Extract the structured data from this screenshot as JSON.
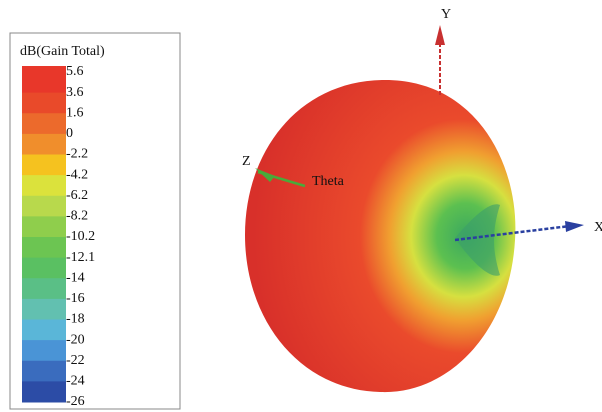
{
  "legend": {
    "title": "dB(Gain Total)",
    "levels": [
      "5.6",
      "3.6",
      "1.6",
      "0",
      "-2.2",
      "-4.2",
      "-6.2",
      "-8.2",
      "-10.2",
      "-12.1",
      "-14",
      "-16",
      "-18",
      "-20",
      "-22",
      "-24",
      "-26"
    ],
    "colors": [
      "#e8372a",
      "#e94a2a",
      "#ec6a2c",
      "#f08e2c",
      "#f5c21f",
      "#dbe23c",
      "#b8d94c",
      "#8fce4c",
      "#6cc552",
      "#5ac062",
      "#5abf86",
      "#62c0b0",
      "#5ab6d8",
      "#4a94d6",
      "#3a6cbe",
      "#2c4ca6"
    ]
  },
  "axes": {
    "x": "X",
    "y": "Y",
    "z": "Z",
    "theta": "Theta"
  }
}
